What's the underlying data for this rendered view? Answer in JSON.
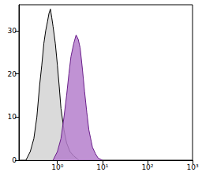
{
  "chart_data": {
    "type": "area",
    "log": "x",
    "xlim": [
      0.14,
      1000
    ],
    "xticks": [
      {
        "value": 1,
        "label": "10⁰"
      },
      {
        "value": 10,
        "label": "10¹"
      },
      {
        "value": 100,
        "label": "10²"
      },
      {
        "value": 1000,
        "label": "10³"
      }
    ],
    "ylim": [
      0,
      36
    ],
    "yticks": [
      0,
      10,
      20,
      30
    ],
    "series": [
      {
        "color": "#d3d3d3",
        "x": [
          0.2,
          0.25,
          0.3,
          0.35,
          0.4,
          0.45,
          0.5,
          0.55,
          0.6,
          0.65,
          0.7,
          0.75,
          0.8,
          0.9,
          1.0,
          1.1,
          1.2,
          1.4,
          1.6,
          1.9,
          2.3,
          3.0
        ],
        "values": [
          0,
          2,
          5,
          10,
          17,
          22,
          27,
          30,
          32,
          34,
          35,
          33,
          31,
          27,
          22,
          17,
          12,
          7,
          4,
          2,
          1,
          0
        ]
      },
      {
        "color": "#b57fcc",
        "x": [
          0.8,
          1.0,
          1.2,
          1.4,
          1.6,
          1.8,
          2.0,
          2.3,
          2.6,
          2.9,
          3.2,
          3.6,
          4.0,
          4.5,
          5.0,
          6.0,
          7.0,
          8.0,
          10.0
        ],
        "values": [
          0,
          2,
          5,
          10,
          15,
          20,
          24,
          27,
          29,
          28,
          26,
          21,
          16,
          11,
          7,
          3,
          1.5,
          0.5,
          0
        ]
      }
    ]
  }
}
